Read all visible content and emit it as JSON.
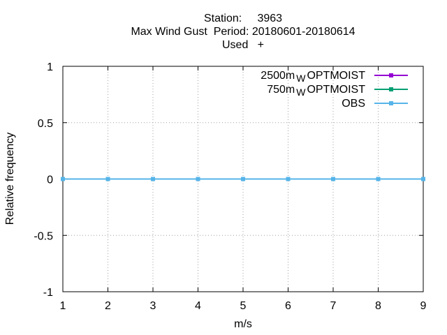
{
  "title": {
    "line1": "Station:     3963",
    "line2": "Max Wind Gust  Period: 20180601-20180614",
    "line3": "Used   +"
  },
  "chart_data": {
    "type": "line",
    "xlabel": "m/s",
    "ylabel": "Relative frequency",
    "xlim": [
      1,
      9
    ],
    "ylim": [
      -1,
      1
    ],
    "x_ticks": [
      "1",
      "2",
      "3",
      "4",
      "5",
      "6",
      "7",
      "8",
      "9"
    ],
    "y_ticks": [
      "1",
      "0.5",
      "0",
      "-0.5",
      "-1"
    ],
    "grid": true,
    "legend_position": "top-right",
    "x": [
      1,
      2,
      3,
      4,
      5,
      6,
      7,
      8,
      9
    ],
    "series": [
      {
        "name": "2500m",
        "subscript": "W",
        "suffix": "OPTMOIST",
        "color": "#9400d3",
        "values": [
          0,
          0,
          0,
          0,
          0,
          0,
          0,
          0,
          0
        ]
      },
      {
        "name": "750m",
        "subscript": "W",
        "suffix": "OPTMOIST",
        "color": "#009e73",
        "values": [
          0,
          0,
          0,
          0,
          0,
          0,
          0,
          0,
          0
        ]
      },
      {
        "name": "OBS",
        "subscript": "",
        "suffix": "",
        "color": "#56b4e9",
        "values": [
          0,
          0,
          0,
          0,
          0,
          0,
          0,
          0,
          0
        ]
      }
    ]
  }
}
